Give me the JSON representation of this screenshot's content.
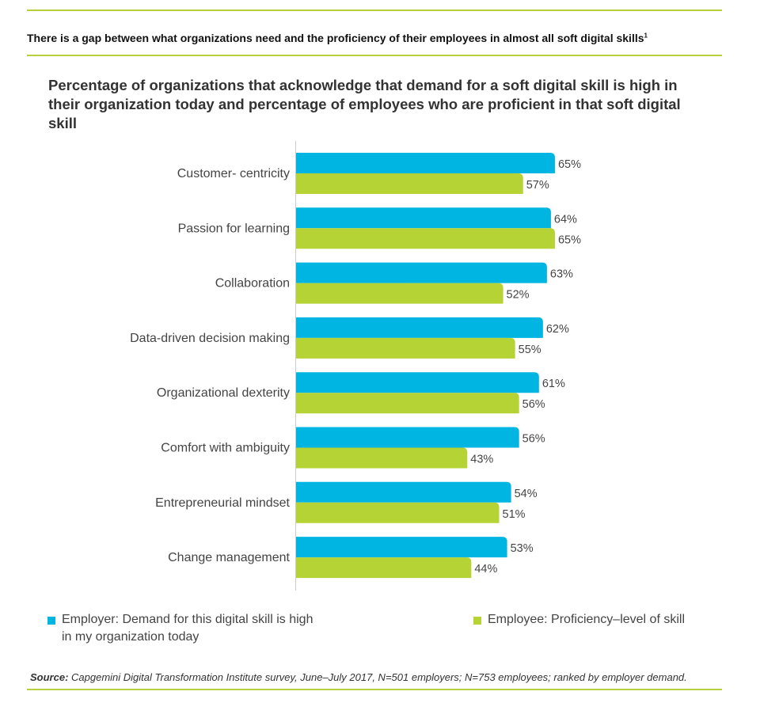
{
  "header": {
    "title": "There is a gap between what organizations need and the proficiency of their employees in almost all soft digital skills",
    "footnote_mark": "1"
  },
  "colors": {
    "employer": "#00b5e2",
    "employee": "#b5d334",
    "rule": "#b5cf3d"
  },
  "chart_data": {
    "type": "bar",
    "orientation": "horizontal",
    "title": "Percentage of organizations that acknowledge that demand for a soft digital skill is high in their organization today and percentage of employees who are proficient in that soft digital skill",
    "categories": [
      "Customer- centricity",
      "Passion for learning",
      "Collaboration",
      "Data-driven decision making",
      "Organizational dexterity",
      "Comfort with ambiguity",
      "Entrepreneurial mindset",
      "Change management"
    ],
    "series": [
      {
        "name": "Employer: Demand for this digital skill is high in my organization today",
        "values": [
          65,
          64,
          63,
          62,
          61,
          56,
          54,
          53
        ]
      },
      {
        "name": "Employee: Proficiency–level of skill",
        "values": [
          57,
          65,
          52,
          55,
          56,
          43,
          51,
          44
        ]
      }
    ],
    "value_suffix": "%",
    "xlim": [
      0,
      100
    ],
    "grid": false,
    "legend_position": "bottom"
  },
  "source": {
    "label": "Source:",
    "text": " Capgemini Digital Transformation Institute survey, June–July 2017, N=501 employers; N=753 employees; ranked by employer demand."
  }
}
